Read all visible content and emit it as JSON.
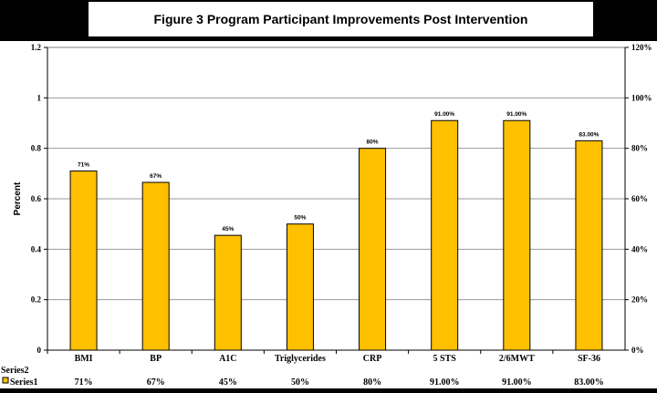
{
  "title": "Figure 3 Program Participant Improvements Post Intervention",
  "colors": {
    "bar": "#FFC000",
    "bar_stroke": "#000000",
    "plot_bg": "#FFFFFF",
    "frame_bg": "#000000"
  },
  "chart_data": {
    "type": "bar",
    "title": "Figure 3 Program Participant Improvements Post Intervention",
    "ylabel": "Percent",
    "ylim": [
      0,
      1.2
    ],
    "yticks": [
      "0",
      "0.2",
      "0.4",
      "0.6",
      "0.8",
      "1",
      "1.2"
    ],
    "y2ticks": [
      "0%",
      "20%",
      "40%",
      "60%",
      "80%",
      "100%",
      "120%"
    ],
    "categories": [
      "BMI",
      "BP",
      "A1C",
      "Triglycerides",
      "CRP",
      "5 STS",
      "2/6MWT",
      "SF-36"
    ],
    "series": [
      {
        "name": "Series1",
        "values": [
          0.71,
          0.665,
          0.455,
          0.5,
          0.8,
          0.91,
          0.91,
          0.83
        ],
        "labels": [
          "71%",
          "67%",
          "45%",
          "50%",
          "80%",
          "91.00%",
          "91.00%",
          "83.00%"
        ]
      }
    ],
    "table": {
      "row_labels": [
        "Series2",
        "Series1"
      ],
      "series1_values": [
        "71%",
        "67%",
        "45%",
        "50%",
        "80%",
        "91.00%",
        "91.00%",
        "83.00%"
      ]
    },
    "grid": true,
    "legend": "data-table"
  }
}
